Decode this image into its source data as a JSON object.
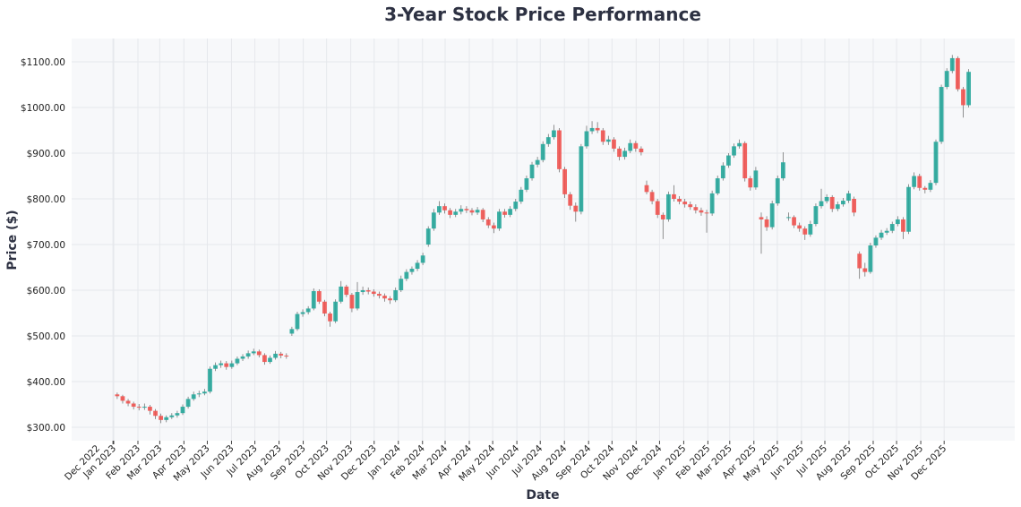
{
  "chart_data": {
    "type": "candlestick",
    "title": "3-Year Stock Price Performance",
    "xlabel": "Date",
    "ylabel": "Price ($)",
    "ylim": [
      270,
      1150
    ],
    "y_ticks": [
      "$300.00",
      "$400.00",
      "$500.00",
      "$600.00",
      "$700.00",
      "$800.00",
      "$900.00",
      "$1000.00",
      "$1100.00"
    ],
    "y_tick_values": [
      300,
      400,
      500,
      600,
      700,
      800,
      900,
      1000,
      1100
    ],
    "x_ticks": [
      {
        "date": "2022-12-31",
        "label": "Dec 2022"
      },
      {
        "date": "2023-01-01",
        "label": "Jan 2023"
      },
      {
        "date": "2023-02-01",
        "label": "Feb 2023"
      },
      {
        "date": "2023-03-01",
        "label": "Mar 2023"
      },
      {
        "date": "2023-04-01",
        "label": "Apr 2023"
      },
      {
        "date": "2023-05-01",
        "label": "May 2023"
      },
      {
        "date": "2023-06-01",
        "label": "Jun 2023"
      },
      {
        "date": "2023-07-01",
        "label": "Jul 2023"
      },
      {
        "date": "2023-08-01",
        "label": "Aug 2023"
      },
      {
        "date": "2023-09-01",
        "label": "Sep 2023"
      },
      {
        "date": "2023-10-01",
        "label": "Oct 2023"
      },
      {
        "date": "2023-11-01",
        "label": "Nov 2023"
      },
      {
        "date": "2023-12-01",
        "label": "Dec 2023"
      },
      {
        "date": "2024-01-01",
        "label": "Jan 2024"
      },
      {
        "date": "2024-02-01",
        "label": "Feb 2024"
      },
      {
        "date": "2024-03-01",
        "label": "Mar 2024"
      },
      {
        "date": "2024-04-01",
        "label": "Apr 2024"
      },
      {
        "date": "2024-05-01",
        "label": "May 2024"
      },
      {
        "date": "2024-06-01",
        "label": "Jun 2024"
      },
      {
        "date": "2024-07-01",
        "label": "Jul 2024"
      },
      {
        "date": "2024-08-01",
        "label": "Aug 2024"
      },
      {
        "date": "2024-09-01",
        "label": "Sep 2024"
      },
      {
        "date": "2024-10-01",
        "label": "Oct 2024"
      },
      {
        "date": "2024-11-01",
        "label": "Nov 2024"
      },
      {
        "date": "2024-12-01",
        "label": "Dec 2024"
      },
      {
        "date": "2025-01-01",
        "label": "Jan 2025"
      },
      {
        "date": "2025-02-01",
        "label": "Feb 2025"
      },
      {
        "date": "2025-03-01",
        "label": "Mar 2025"
      },
      {
        "date": "2025-04-01",
        "label": "Apr 2025"
      },
      {
        "date": "2025-05-01",
        "label": "May 2025"
      },
      {
        "date": "2025-06-01",
        "label": "Jun 2025"
      },
      {
        "date": "2025-07-01",
        "label": "Jul 2025"
      },
      {
        "date": "2025-08-01",
        "label": "Aug 2025"
      },
      {
        "date": "2025-09-01",
        "label": "Sep 2025"
      },
      {
        "date": "2025-10-01",
        "label": "Oct 2025"
      },
      {
        "date": "2025-11-01",
        "label": "Nov 2025"
      },
      {
        "date": "2025-12-01",
        "label": "Dec 2025"
      }
    ],
    "grid": true,
    "colors": {
      "up": "#26a69a",
      "down": "#ef5350",
      "background": "#f7f8fa",
      "grid": "#e6e8ec"
    },
    "columns": [
      "date",
      "open",
      "high",
      "low",
      "close"
    ],
    "candles": [
      [
        "2023-01-02",
        372,
        376,
        362,
        368
      ],
      [
        "2023-01-09",
        368,
        371,
        352,
        358
      ],
      [
        "2023-01-16",
        358,
        362,
        346,
        352
      ],
      [
        "2023-01-23",
        352,
        356,
        339,
        345
      ],
      [
        "2023-01-30",
        345,
        351,
        337,
        343
      ],
      [
        "2023-02-06",
        343,
        352,
        338,
        345
      ],
      [
        "2023-02-13",
        345,
        349,
        328,
        336
      ],
      [
        "2023-02-20",
        336,
        340,
        318,
        325
      ],
      [
        "2023-02-27",
        325,
        330,
        309,
        316
      ],
      [
        "2023-03-06",
        316,
        326,
        311,
        322
      ],
      [
        "2023-03-13",
        322,
        331,
        318,
        326
      ],
      [
        "2023-03-20",
        326,
        336,
        321,
        331
      ],
      [
        "2023-03-27",
        331,
        350,
        327,
        345
      ],
      [
        "2023-04-03",
        345,
        367,
        341,
        362
      ],
      [
        "2023-04-10",
        362,
        378,
        358,
        372
      ],
      [
        "2023-04-17",
        372,
        380,
        366,
        374
      ],
      [
        "2023-04-24",
        374,
        384,
        370,
        378
      ],
      [
        "2023-05-01",
        378,
        433,
        374,
        428
      ],
      [
        "2023-05-08",
        428,
        442,
        423,
        436
      ],
      [
        "2023-05-15",
        436,
        446,
        430,
        440
      ],
      [
        "2023-05-22",
        440,
        445,
        426,
        432
      ],
      [
        "2023-05-29",
        432,
        446,
        428,
        440
      ],
      [
        "2023-06-05",
        440,
        455,
        436,
        450
      ],
      [
        "2023-06-12",
        450,
        460,
        445,
        455
      ],
      [
        "2023-06-19",
        455,
        468,
        450,
        462
      ],
      [
        "2023-06-26",
        462,
        472,
        458,
        466
      ],
      [
        "2023-07-03",
        466,
        470,
        453,
        458
      ],
      [
        "2023-07-10",
        458,
        462,
        437,
        443
      ],
      [
        "2023-07-17",
        443,
        457,
        439,
        452
      ],
      [
        "2023-07-24",
        452,
        467,
        448,
        461
      ],
      [
        "2023-07-31",
        461,
        465,
        451,
        457
      ],
      [
        "2023-08-07",
        457,
        462,
        450,
        455
      ],
      [
        "2023-08-14",
        505,
        520,
        500,
        515
      ],
      [
        "2023-08-21",
        515,
        553,
        511,
        548
      ],
      [
        "2023-08-28",
        548,
        558,
        542,
        552
      ],
      [
        "2023-09-04",
        552,
        565,
        547,
        560
      ],
      [
        "2023-09-11",
        560,
        604,
        556,
        598
      ],
      [
        "2023-09-18",
        598,
        602,
        570,
        575
      ],
      [
        "2023-09-25",
        575,
        579,
        543,
        549
      ],
      [
        "2023-10-02",
        549,
        553,
        520,
        532
      ],
      [
        "2023-10-09",
        532,
        580,
        528,
        575
      ],
      [
        "2023-10-16",
        575,
        620,
        571,
        608
      ],
      [
        "2023-10-23",
        608,
        612,
        585,
        590
      ],
      [
        "2023-10-30",
        590,
        594,
        552,
        560
      ],
      [
        "2023-11-06",
        560,
        618,
        556,
        596
      ],
      [
        "2023-11-13",
        596,
        608,
        590,
        600
      ],
      [
        "2023-11-20",
        600,
        606,
        591,
        597
      ],
      [
        "2023-11-27",
        597,
        602,
        586,
        592
      ],
      [
        "2023-12-04",
        592,
        597,
        582,
        588
      ],
      [
        "2023-12-11",
        588,
        593,
        575,
        582
      ],
      [
        "2023-12-18",
        582,
        587,
        570,
        578
      ],
      [
        "2023-12-25",
        578,
        606,
        574,
        600
      ],
      [
        "2024-01-01",
        600,
        632,
        596,
        625
      ],
      [
        "2024-01-08",
        625,
        646,
        620,
        640
      ],
      [
        "2024-01-15",
        640,
        652,
        634,
        647
      ],
      [
        "2024-01-22",
        647,
        666,
        642,
        660
      ],
      [
        "2024-01-29",
        660,
        682,
        655,
        676
      ],
      [
        "2024-02-05",
        700,
        740,
        695,
        735
      ],
      [
        "2024-02-12",
        735,
        778,
        730,
        770
      ],
      [
        "2024-02-19",
        770,
        795,
        765,
        784
      ],
      [
        "2024-02-26",
        784,
        790,
        768,
        775
      ],
      [
        "2024-03-04",
        775,
        780,
        758,
        765
      ],
      [
        "2024-03-11",
        765,
        778,
        760,
        772
      ],
      [
        "2024-03-18",
        772,
        786,
        766,
        778
      ],
      [
        "2024-03-25",
        778,
        784,
        769,
        775
      ],
      [
        "2024-04-01",
        775,
        780,
        764,
        770
      ],
      [
        "2024-04-08",
        770,
        782,
        765,
        776
      ],
      [
        "2024-04-15",
        776,
        780,
        749,
        755
      ],
      [
        "2024-04-22",
        755,
        760,
        736,
        742
      ],
      [
        "2024-04-29",
        742,
        748,
        725,
        735
      ],
      [
        "2024-05-06",
        735,
        778,
        730,
        772
      ],
      [
        "2024-05-13",
        772,
        778,
        759,
        765
      ],
      [
        "2024-05-20",
        765,
        784,
        760,
        778
      ],
      [
        "2024-05-27",
        778,
        800,
        773,
        794
      ],
      [
        "2024-06-03",
        794,
        826,
        789,
        820
      ],
      [
        "2024-06-10",
        820,
        851,
        815,
        845
      ],
      [
        "2024-06-17",
        845,
        881,
        840,
        875
      ],
      [
        "2024-06-24",
        875,
        892,
        869,
        885
      ],
      [
        "2024-07-01",
        885,
        926,
        880,
        920
      ],
      [
        "2024-07-08",
        920,
        942,
        914,
        935
      ],
      [
        "2024-07-15",
        935,
        962,
        930,
        950
      ],
      [
        "2024-07-22",
        950,
        955,
        858,
        865
      ],
      [
        "2024-07-29",
        865,
        870,
        802,
        810
      ],
      [
        "2024-08-05",
        810,
        815,
        776,
        785
      ],
      [
        "2024-08-12",
        785,
        792,
        750,
        772
      ],
      [
        "2024-08-19",
        772,
        920,
        766,
        915
      ],
      [
        "2024-08-26",
        915,
        960,
        910,
        948
      ],
      [
        "2024-09-02",
        948,
        970,
        942,
        955
      ],
      [
        "2024-09-09",
        955,
        968,
        944,
        950
      ],
      [
        "2024-09-16",
        950,
        955,
        918,
        925
      ],
      [
        "2024-09-23",
        925,
        938,
        918,
        930
      ],
      [
        "2024-09-30",
        930,
        935,
        903,
        910
      ],
      [
        "2024-10-07",
        910,
        915,
        884,
        892
      ],
      [
        "2024-10-14",
        892,
        912,
        886,
        905
      ],
      [
        "2024-10-21",
        905,
        930,
        900,
        922
      ],
      [
        "2024-10-28",
        922,
        927,
        903,
        910
      ],
      [
        "2024-11-04",
        910,
        915,
        895,
        902
      ],
      [
        "2024-11-11",
        830,
        840,
        810,
        815
      ],
      [
        "2024-11-18",
        815,
        820,
        788,
        795
      ],
      [
        "2024-11-25",
        795,
        800,
        758,
        765
      ],
      [
        "2024-12-02",
        765,
        770,
        712,
        755
      ],
      [
        "2024-12-09",
        755,
        816,
        750,
        810
      ],
      [
        "2024-12-16",
        810,
        830,
        794,
        800
      ],
      [
        "2024-12-23",
        800,
        806,
        788,
        794
      ],
      [
        "2024-12-30",
        794,
        800,
        781,
        788
      ],
      [
        "2025-01-06",
        788,
        794,
        776,
        782
      ],
      [
        "2025-01-13",
        782,
        788,
        768,
        775
      ],
      [
        "2025-01-20",
        775,
        781,
        763,
        770
      ],
      [
        "2025-01-27",
        770,
        776,
        726,
        768
      ],
      [
        "2025-02-03",
        768,
        818,
        763,
        812
      ],
      [
        "2025-02-10",
        812,
        851,
        808,
        845
      ],
      [
        "2025-02-17",
        845,
        880,
        840,
        873
      ],
      [
        "2025-02-24",
        873,
        900,
        868,
        895
      ],
      [
        "2025-03-03",
        895,
        921,
        890,
        915
      ],
      [
        "2025-03-10",
        915,
        930,
        910,
        922
      ],
      [
        "2025-03-17",
        922,
        926,
        838,
        845
      ],
      [
        "2025-03-24",
        845,
        850,
        818,
        825
      ],
      [
        "2025-03-31",
        825,
        870,
        820,
        862
      ],
      [
        "2025-04-07",
        760,
        770,
        680,
        755
      ],
      [
        "2025-04-14",
        755,
        762,
        730,
        738
      ],
      [
        "2025-04-21",
        738,
        796,
        733,
        790
      ],
      [
        "2025-04-28",
        790,
        851,
        785,
        845
      ],
      [
        "2025-05-05",
        845,
        902,
        840,
        880
      ],
      [
        "2025-05-12",
        760,
        770,
        752,
        760
      ],
      [
        "2025-05-19",
        760,
        764,
        736,
        742
      ],
      [
        "2025-05-26",
        742,
        748,
        728,
        735
      ],
      [
        "2025-06-02",
        735,
        740,
        710,
        722
      ],
      [
        "2025-06-09",
        722,
        752,
        717,
        745
      ],
      [
        "2025-06-16",
        745,
        790,
        740,
        784
      ],
      [
        "2025-06-23",
        784,
        822,
        779,
        795
      ],
      [
        "2025-06-30",
        795,
        810,
        790,
        804
      ],
      [
        "2025-07-07",
        804,
        808,
        771,
        778
      ],
      [
        "2025-07-14",
        778,
        794,
        773,
        788
      ],
      [
        "2025-07-21",
        788,
        802,
        783,
        796
      ],
      [
        "2025-07-28",
        796,
        818,
        791,
        812
      ],
      [
        "2025-08-04",
        800,
        805,
        762,
        770
      ],
      [
        "2025-08-11",
        680,
        685,
        625,
        648
      ],
      [
        "2025-08-18",
        648,
        660,
        630,
        640
      ],
      [
        "2025-08-25",
        640,
        704,
        636,
        698
      ],
      [
        "2025-09-01",
        698,
        720,
        693,
        715
      ],
      [
        "2025-09-08",
        715,
        732,
        710,
        726
      ],
      [
        "2025-09-15",
        726,
        736,
        721,
        730
      ],
      [
        "2025-09-22",
        730,
        750,
        725,
        745
      ],
      [
        "2025-09-29",
        745,
        762,
        740,
        755
      ],
      [
        "2025-10-06",
        755,
        760,
        712,
        728
      ],
      [
        "2025-10-13",
        728,
        832,
        723,
        826
      ],
      [
        "2025-10-20",
        826,
        858,
        821,
        850
      ],
      [
        "2025-10-27",
        850,
        855,
        818,
        824
      ],
      [
        "2025-11-03",
        824,
        828,
        812,
        820
      ],
      [
        "2025-11-10",
        820,
        841,
        815,
        835
      ],
      [
        "2025-11-17",
        835,
        930,
        830,
        925
      ],
      [
        "2025-11-24",
        925,
        1050,
        920,
        1045
      ],
      [
        "2025-12-01",
        1045,
        1086,
        1040,
        1080
      ],
      [
        "2025-12-08",
        1080,
        1115,
        1075,
        1108
      ],
      [
        "2025-12-15",
        1108,
        1112,
        1035,
        1040
      ],
      [
        "2025-12-22",
        1040,
        1045,
        978,
        1005
      ],
      [
        "2025-12-29",
        1005,
        1084,
        1000,
        1078
      ]
    ]
  }
}
